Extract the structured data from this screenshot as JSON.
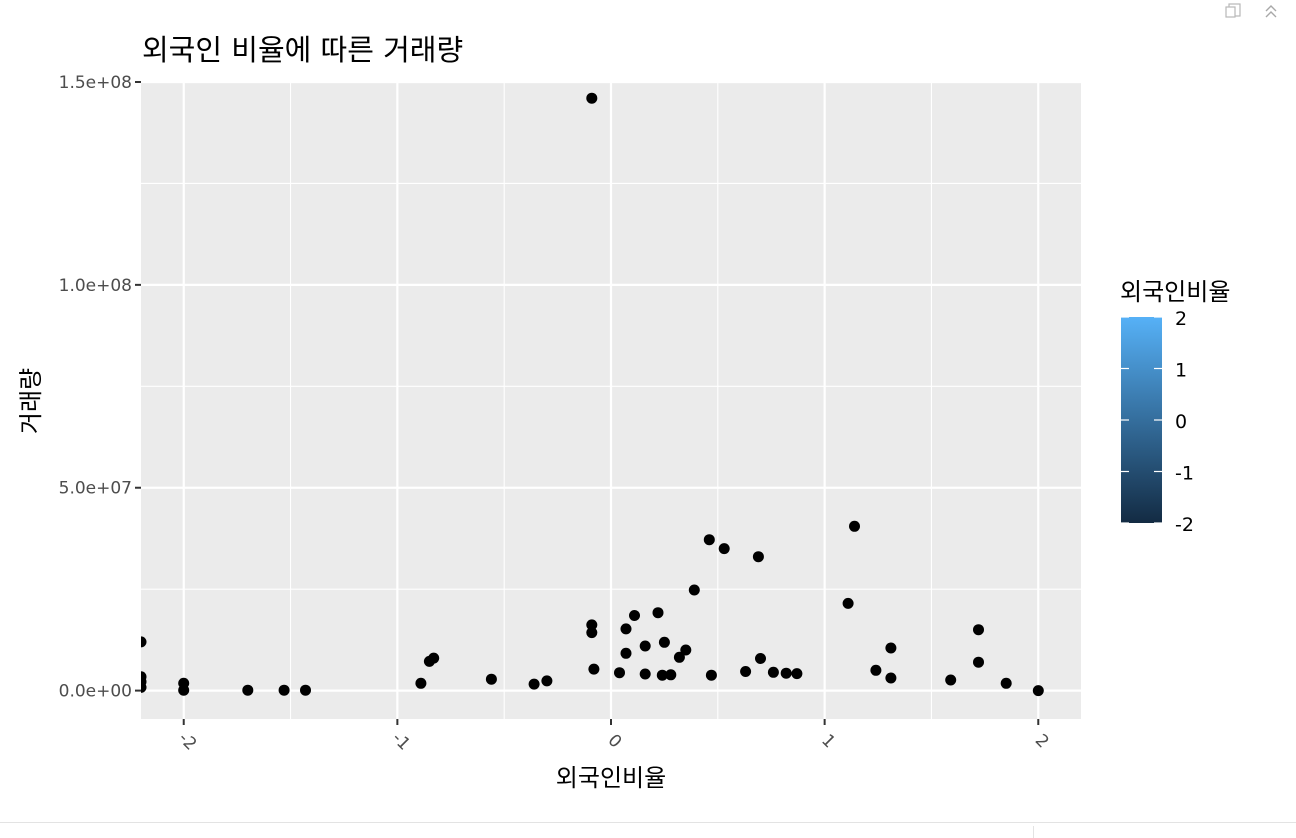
{
  "toolbar": {
    "icons": [
      "popout-icon",
      "collapse-icon"
    ]
  },
  "chart_data": {
    "type": "scatter",
    "title": "외국인 비율에 따른 거래량",
    "xlabel": "외국인비율",
    "ylabel": "거래량",
    "xlim": [
      -2.2,
      2.2
    ],
    "ylim": [
      -7000000,
      150000000
    ],
    "x_ticks": [
      -2,
      -1,
      0,
      1,
      2
    ],
    "x_tick_labels": [
      "-2",
      "-1",
      "0",
      "1",
      "2"
    ],
    "y_ticks": [
      0,
      50000000,
      100000000,
      150000000
    ],
    "y_tick_labels": [
      "0.0e+00",
      "5.0e+07",
      "1.0e+08",
      "1.5e+08"
    ],
    "grid": true,
    "point_color": "#000000",
    "panel_background": "#EBEBEB",
    "legend": {
      "title": "외국인비율",
      "type": "continuous",
      "position": "right",
      "labels": [
        "2",
        "1",
        "0",
        "-1",
        "-2"
      ],
      "colors": [
        "#56B1F7",
        "#132B43"
      ]
    },
    "points": [
      [
        -0.09,
        146000000
      ],
      [
        1.14,
        40500000
      ],
      [
        0.46,
        37200000
      ],
      [
        0.53,
        35000000
      ],
      [
        0.69,
        33000000
      ],
      [
        0.39,
        24800000
      ],
      [
        1.11,
        21500000
      ],
      [
        0.22,
        19200000
      ],
      [
        0.11,
        18500000
      ],
      [
        -0.09,
        16200000
      ],
      [
        -0.09,
        14300000
      ],
      [
        1.72,
        15000000
      ],
      [
        0.07,
        15200000
      ],
      [
        0.16,
        11000000
      ],
      [
        0.25,
        11900000
      ],
      [
        0.35,
        10000000
      ],
      [
        1.31,
        10500000
      ],
      [
        0.07,
        9200000
      ],
      [
        0.32,
        8200000
      ],
      [
        -0.83,
        8000000
      ],
      [
        -0.85,
        7200000
      ],
      [
        1.72,
        7000000
      ],
      [
        0.7,
        7900000
      ],
      [
        0.63,
        4700000
      ],
      [
        1.24,
        5000000
      ],
      [
        -0.08,
        5300000
      ],
      [
        0.04,
        4400000
      ],
      [
        0.76,
        4500000
      ],
      [
        0.82,
        4300000
      ],
      [
        0.87,
        4200000
      ],
      [
        0.47,
        3800000
      ],
      [
        0.24,
        3800000
      ],
      [
        0.28,
        3900000
      ],
      [
        0.16,
        4100000
      ],
      [
        -2.2,
        12000000
      ],
      [
        -2.2,
        3400000
      ],
      [
        -2.2,
        2200000
      ],
      [
        -2.2,
        800000
      ],
      [
        -2.0,
        1800000
      ],
      [
        -2.0,
        100000
      ],
      [
        -1.7,
        100000
      ],
      [
        -1.53,
        100000
      ],
      [
        -1.43,
        100000
      ],
      [
        -0.56,
        2800000
      ],
      [
        -0.89,
        1800000
      ],
      [
        -0.3,
        2400000
      ],
      [
        -0.36,
        1600000
      ],
      [
        1.59,
        2600000
      ],
      [
        1.85,
        1800000
      ],
      [
        1.31,
        3100000
      ],
      [
        2.0,
        0
      ]
    ]
  }
}
